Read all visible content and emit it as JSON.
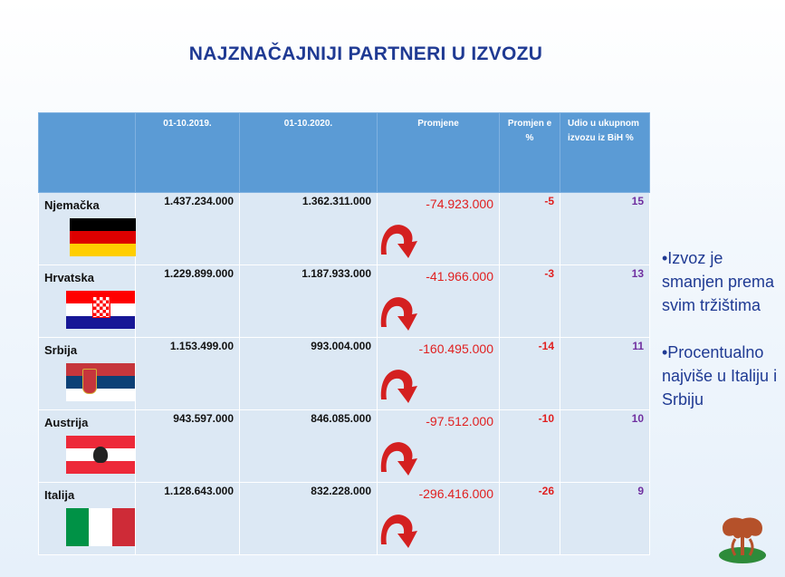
{
  "title": "NAJZNAČAJNIJI PARTNERI U IZVOZU",
  "headers": [
    "",
    "01-10.2019.",
    "01-10.2020.",
    "Promjene",
    "Promjen e %",
    "Udio u ukupnom izvozu iz  BiH %"
  ],
  "rows": [
    {
      "country": "Njemačka",
      "y2019": "1.437.234.000",
      "y2020": "1.362.311.000",
      "change": "-74.923.000",
      "pct": "-5",
      "share": "15",
      "flag": "germany-flag"
    },
    {
      "country": "Hrvatska",
      "y2019": "1.229.899.000",
      "y2020": "1.187.933.000",
      "change": "-41.966.000",
      "pct": "-3",
      "share": "13",
      "flag": "croatia-flag"
    },
    {
      "country": "Srbija",
      "y2019": "1.153.499.00",
      "y2020": "993.004.000",
      "change": "-160.495.000",
      "pct": "-14",
      "share": "11",
      "flag": "serbia-flag"
    },
    {
      "country": "Austrija",
      "y2019": "943.597.000",
      "y2020": "846.085.000",
      "change": "-97.512.000",
      "pct": "-10",
      "share": "10",
      "flag": "austria-flag"
    },
    {
      "country": "Italija",
      "y2019": "1.128.643.000",
      "y2020": "832.228.000",
      "change": "-296.416.000",
      "pct": "-26",
      "share": "9",
      "flag": "italy-flag"
    }
  ],
  "bullets": [
    "•Izvoz je smanjen prema svim tržištima",
    "•Procentualno najviše u Italiju i Srbiju"
  ],
  "colors": {
    "header": "#5b9bd5",
    "cell": "#dce8f4",
    "title": "#1f3a93",
    "negative": "#e02020",
    "share": "#7030a0"
  },
  "icons": {
    "arrow": "red-curved-down-arrow-icon",
    "logo": "tree-logo-icon"
  }
}
